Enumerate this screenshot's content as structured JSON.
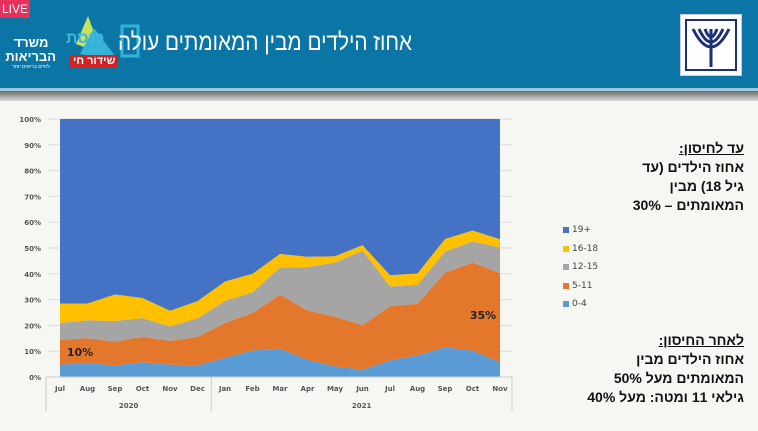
{
  "header": {
    "live_badge": "LIVE",
    "ministry_logo_text": "משרד הבריאות",
    "ministry_logo_tagline": "לחיים בריאים יותר",
    "channel_logo_text": "כנסת",
    "live_hebrew": "שידור חי",
    "title": "אחוז הילדים מבין המאומתים עולה",
    "emblem_text": "משרד הבריאות"
  },
  "notes": {
    "before": {
      "heading": "עד לחיסון:",
      "lines": [
        "אחוז הילדים (עד",
        "גיל 18) מבין",
        "המאומתים – 30%"
      ]
    },
    "after": {
      "heading": "לאחר החיסון:",
      "lines": [
        "אחוז הילדים מבין",
        "המאומתים מעל 50%",
        "גילאי 11 ומטה: מעל 40%"
      ]
    }
  },
  "chart_data": {
    "type": "area",
    "stacked": true,
    "normalized": true,
    "categories": [
      "Jul",
      "Aug",
      "Sep",
      "Oct",
      "Nov",
      "Dec",
      "Jan",
      "Feb",
      "Mar",
      "Apr",
      "May",
      "Jun",
      "Jul",
      "Aug",
      "Sep",
      "Oct",
      "Nov"
    ],
    "category_groups": [
      {
        "label": "2020",
        "count": 6
      },
      {
        "label": "2021",
        "count": 11
      }
    ],
    "ylim": [
      0,
      100
    ],
    "yticks": [
      "0%",
      "10%",
      "20%",
      "30%",
      "40%",
      "50%",
      "60%",
      "70%",
      "80%",
      "90%",
      "100%"
    ],
    "grid": true,
    "legend_position": "right",
    "series": [
      {
        "name": "0-4",
        "color": "#5b9bd5",
        "values": [
          4.8,
          5.4,
          4.5,
          5.7,
          4.8,
          4.5,
          7.4,
          10.3,
          11.0,
          6.7,
          4.1,
          2.8,
          6.5,
          8.4,
          11.6,
          10.2,
          5.7
        ]
      },
      {
        "name": "5-11",
        "color": "#e3782d",
        "values": [
          9.7,
          9.6,
          9.2,
          9.9,
          9.2,
          11.0,
          13.6,
          14.5,
          20.9,
          19.1,
          19.3,
          17.3,
          20.9,
          20.0,
          28.8,
          34.2,
          34.6
        ]
      },
      {
        "name": "12-15",
        "color": "#a5a5a5",
        "values": [
          6.5,
          7.0,
          8.0,
          7.2,
          5.6,
          7.2,
          8.5,
          8.0,
          10.6,
          16.8,
          21.0,
          28.9,
          7.7,
          7.3,
          8.2,
          8.1,
          9.9
        ]
      },
      {
        "name": "16-18",
        "color": "#ffc000",
        "values": [
          7.5,
          6.5,
          10.3,
          7.8,
          6.1,
          6.7,
          7.5,
          7.2,
          5.2,
          4.0,
          2.4,
          2.1,
          4.4,
          4.4,
          4.9,
          4.3,
          3.2
        ]
      },
      {
        "name": "19+",
        "color": "#4472c4",
        "values": [
          71.5,
          71.5,
          68.0,
          69.4,
          74.3,
          70.6,
          63.0,
          60.0,
          52.3,
          53.4,
          53.2,
          48.9,
          60.5,
          59.9,
          46.5,
          43.2,
          46.6
        ]
      }
    ],
    "annotations": [
      {
        "text": "10%",
        "category_index": 0
      },
      {
        "text": "35%",
        "category_index": 16
      }
    ]
  }
}
